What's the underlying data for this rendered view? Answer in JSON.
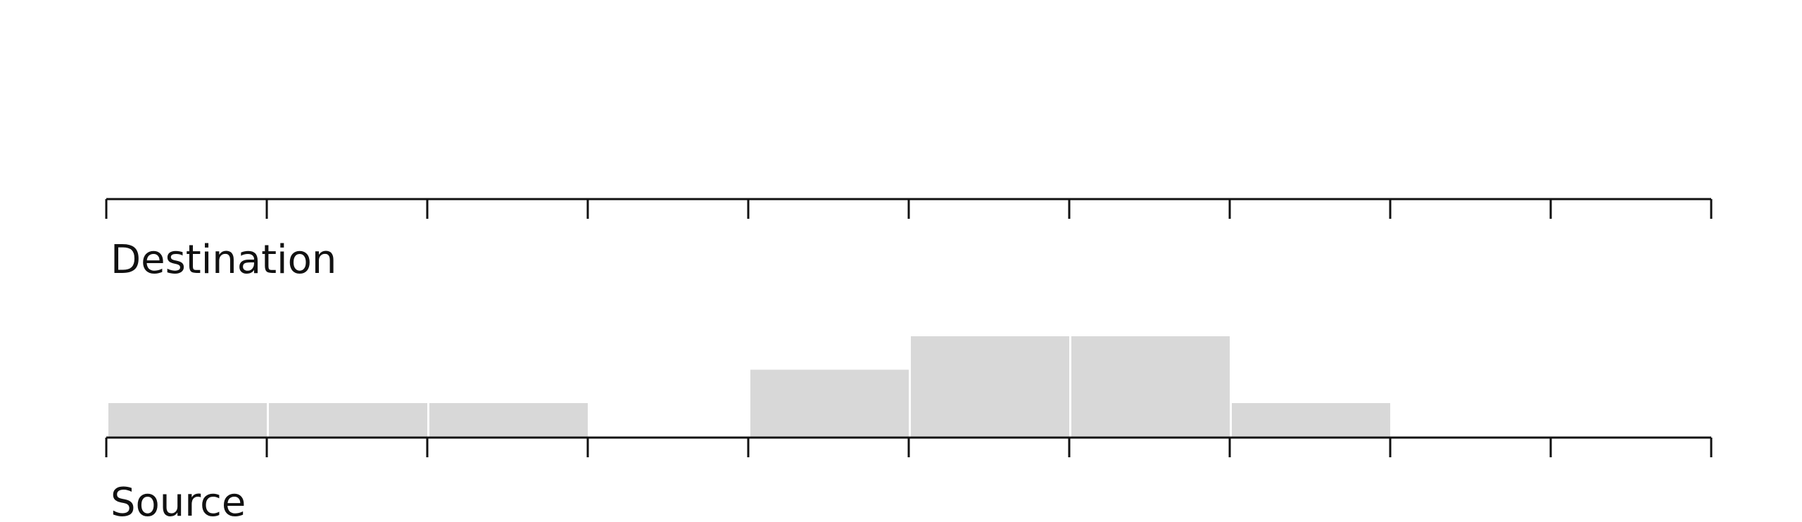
{
  "chart_data": {
    "type": "bar",
    "title": "",
    "bin_count": 10,
    "grid": false,
    "axes": {
      "destination": {
        "label": "Destination"
      },
      "source": {
        "label": "Source"
      }
    },
    "series": [
      {
        "axis": "source",
        "color": "#d8d8d8",
        "values": [
          1,
          1,
          1,
          0,
          2,
          3,
          3,
          1,
          0,
          0
        ]
      },
      {
        "axis": "destination",
        "color": "#d8d8d8",
        "values": [
          0,
          0,
          0,
          0,
          0,
          0,
          0,
          0,
          0,
          0
        ]
      }
    ],
    "ylim": [
      0,
      3
    ]
  }
}
